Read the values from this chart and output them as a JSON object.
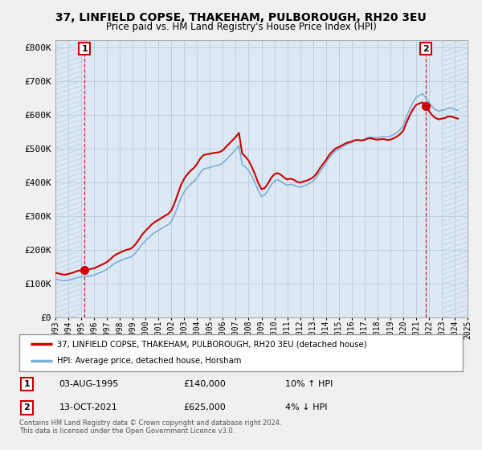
{
  "title": "37, LINFIELD COPSE, THAKEHAM, PULBOROUGH, RH20 3EU",
  "subtitle": "Price paid vs. HM Land Registry's House Price Index (HPI)",
  "ylim": [
    0,
    820000
  ],
  "yticks": [
    0,
    100000,
    200000,
    300000,
    400000,
    500000,
    600000,
    700000,
    800000
  ],
  "ytick_labels": [
    "£0",
    "£100K",
    "£200K",
    "£300K",
    "£400K",
    "£500K",
    "£600K",
    "£700K",
    "£800K"
  ],
  "bg_color": "#f0f0f0",
  "plot_bg_color": "#dce9f5",
  "hatch_color": "#c8d8e8",
  "grid_color": "#b8ccd8",
  "hpi_color": "#7bafd4",
  "price_color": "#cc0000",
  "legend_label_price": "37, LINFIELD COPSE, THAKEHAM, PULBOROUGH, RH20 3EU (detached house)",
  "legend_label_hpi": "HPI: Average price, detached house, Horsham",
  "sale1_date": "03-AUG-1995",
  "sale1_price": "£140,000",
  "sale1_hpi": "10% ↑ HPI",
  "sale2_date": "13-OCT-2021",
  "sale2_price": "£625,000",
  "sale2_hpi": "4% ↓ HPI",
  "copyright": "Contains HM Land Registry data © Crown copyright and database right 2024.\nThis data is licensed under the Open Government Licence v3.0.",
  "hpi_data_x": [
    1993.0,
    1993.25,
    1993.5,
    1993.75,
    1994.0,
    1994.25,
    1994.5,
    1994.75,
    1995.0,
    1995.25,
    1995.5,
    1995.75,
    1996.0,
    1996.25,
    1996.5,
    1996.75,
    1997.0,
    1997.25,
    1997.5,
    1997.75,
    1998.0,
    1998.25,
    1998.5,
    1998.75,
    1999.0,
    1999.25,
    1999.5,
    1999.75,
    2000.0,
    2000.25,
    2000.5,
    2000.75,
    2001.0,
    2001.25,
    2001.5,
    2001.75,
    2002.0,
    2002.25,
    2002.5,
    2002.75,
    2003.0,
    2003.25,
    2003.5,
    2003.75,
    2004.0,
    2004.25,
    2004.5,
    2004.75,
    2005.0,
    2005.25,
    2005.5,
    2005.75,
    2006.0,
    2006.25,
    2006.5,
    2006.75,
    2007.0,
    2007.25,
    2007.5,
    2007.75,
    2008.0,
    2008.25,
    2008.5,
    2008.75,
    2009.0,
    2009.25,
    2009.5,
    2009.75,
    2010.0,
    2010.25,
    2010.5,
    2010.75,
    2011.0,
    2011.25,
    2011.5,
    2011.75,
    2012.0,
    2012.25,
    2012.5,
    2012.75,
    2013.0,
    2013.25,
    2013.5,
    2013.75,
    2014.0,
    2014.25,
    2014.5,
    2014.75,
    2015.0,
    2015.25,
    2015.5,
    2015.75,
    2016.0,
    2016.25,
    2016.5,
    2016.75,
    2017.0,
    2017.25,
    2017.5,
    2017.75,
    2018.0,
    2018.25,
    2018.5,
    2018.75,
    2019.0,
    2019.25,
    2019.5,
    2019.75,
    2020.0,
    2020.25,
    2020.5,
    2020.75,
    2021.0,
    2021.25,
    2021.5,
    2021.75,
    2022.0,
    2022.25,
    2022.5,
    2022.75,
    2023.0,
    2023.25,
    2023.5,
    2023.75,
    2024.0,
    2024.25
  ],
  "hpi_data_y": [
    113000,
    111000,
    109000,
    108000,
    110000,
    112000,
    115000,
    118000,
    119000,
    120000,
    121000,
    123000,
    125000,
    129000,
    133000,
    137000,
    142000,
    149000,
    157000,
    163000,
    167000,
    171000,
    175000,
    177000,
    182000,
    192000,
    204000,
    217000,
    227000,
    236000,
    245000,
    252000,
    257000,
    263000,
    269000,
    274000,
    284000,
    304000,
    329000,
    354000,
    371000,
    384000,
    394000,
    402000,
    414000,
    429000,
    439000,
    442000,
    444000,
    447000,
    449000,
    451000,
    457000,
    467000,
    477000,
    487000,
    497000,
    509000,
    453000,
    445000,
    435000,
    418000,
    398000,
    375000,
    358000,
    362000,
    375000,
    392000,
    403000,
    407000,
    403000,
    396000,
    391000,
    394000,
    392000,
    387000,
    385000,
    389000,
    392000,
    397000,
    403000,
    413000,
    429000,
    443000,
    456000,
    472000,
    483000,
    493000,
    498000,
    504000,
    510000,
    515000,
    518000,
    523000,
    525000,
    524000,
    527000,
    532000,
    534000,
    532000,
    532000,
    534000,
    536000,
    534000,
    536000,
    541000,
    547000,
    556000,
    567000,
    593000,
    616000,
    636000,
    651000,
    657000,
    662000,
    651000,
    637000,
    624000,
    615000,
    611000,
    613000,
    615000,
    620000,
    619000,
    616000,
    613000
  ],
  "sale1_x": 1995.25,
  "sale1_y": 140000,
  "sale2_x": 2021.75,
  "sale2_y": 625000,
  "xlim": [
    1993.0,
    2025.0
  ],
  "xtick_years": [
    1993,
    1994,
    1995,
    1996,
    1997,
    1998,
    1999,
    2000,
    2001,
    2002,
    2003,
    2004,
    2005,
    2006,
    2007,
    2008,
    2009,
    2010,
    2011,
    2012,
    2013,
    2014,
    2015,
    2016,
    2017,
    2018,
    2019,
    2020,
    2021,
    2022,
    2023,
    2024,
    2025
  ]
}
